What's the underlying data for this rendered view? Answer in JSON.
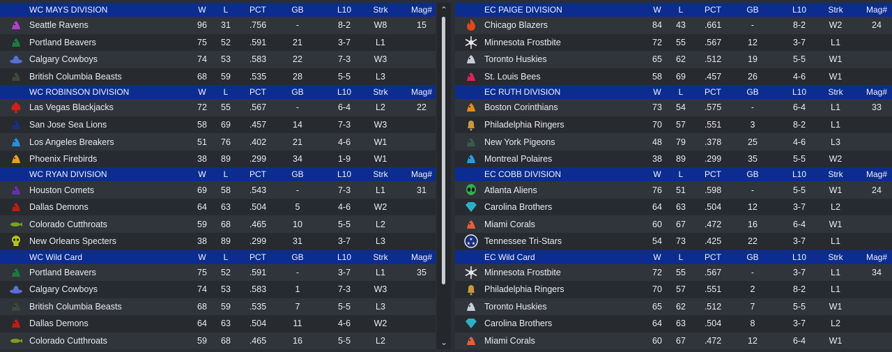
{
  "columns": {
    "w": "W",
    "l": "L",
    "pct": "PCT",
    "gb": "GB",
    "l10": "L10",
    "strk": "Strk",
    "mag": "Mag#"
  },
  "left": [
    {
      "division": "WC MAYS DIVISION",
      "teams": [
        {
          "team": "Seattle Ravens",
          "w": "96",
          "l": "31",
          "pct": ".756",
          "gb": "-",
          "l10": "8-2",
          "strk": "W8",
          "mag": "15",
          "logo": "raven-icon",
          "color": "#b13fc9"
        },
        {
          "team": "Portland Beavers",
          "w": "75",
          "l": "52",
          "pct": ".591",
          "gb": "21",
          "l10": "3-7",
          "strk": "L1",
          "mag": "",
          "logo": "beaver-icon",
          "color": "#1d7a3a"
        },
        {
          "team": "Calgary Cowboys",
          "w": "74",
          "l": "53",
          "pct": ".583",
          "gb": "22",
          "l10": "7-3",
          "strk": "W3",
          "mag": "",
          "logo": "cowboy-hat-icon",
          "color": "#5a6fd6"
        },
        {
          "team": "British Columbia Beasts",
          "w": "68",
          "l": "59",
          "pct": ".535",
          "gb": "28",
          "l10": "5-5",
          "strk": "L3",
          "mag": "",
          "logo": "beast-icon",
          "color": "#3a4a3a"
        }
      ]
    },
    {
      "division": "WC ROBINSON DIVISION",
      "teams": [
        {
          "team": "Las Vegas Blackjacks",
          "w": "72",
          "l": "55",
          "pct": ".567",
          "gb": "-",
          "l10": "6-4",
          "strk": "L2",
          "mag": "22",
          "logo": "spade-icon",
          "color": "#d11f1f"
        },
        {
          "team": "San Jose Sea Lions",
          "w": "58",
          "l": "69",
          "pct": ".457",
          "gb": "14",
          "l10": "7-3",
          "strk": "W3",
          "mag": "",
          "logo": "sea-lion-icon",
          "color": "#1a2f7a"
        },
        {
          "team": "Los Angeles Breakers",
          "w": "51",
          "l": "76",
          "pct": ".402",
          "gb": "21",
          "l10": "4-6",
          "strk": "W1",
          "mag": "",
          "logo": "wave-icon",
          "color": "#2a8fd6"
        },
        {
          "team": "Phoenix Firebirds",
          "w": "38",
          "l": "89",
          "pct": ".299",
          "gb": "34",
          "l10": "1-9",
          "strk": "W1",
          "mag": "",
          "logo": "firebird-icon",
          "color": "#e6a020"
        }
      ]
    },
    {
      "division": "WC RYAN DIVISION",
      "teams": [
        {
          "team": "Houston Comets",
          "w": "69",
          "l": "58",
          "pct": ".543",
          "gb": "-",
          "l10": "7-3",
          "strk": "L1",
          "mag": "31",
          "logo": "comet-icon",
          "color": "#6a2fb0"
        },
        {
          "team": "Dallas Demons",
          "w": "64",
          "l": "63",
          "pct": ".504",
          "gb": "5",
          "l10": "4-6",
          "strk": "W2",
          "mag": "",
          "logo": "demon-icon",
          "color": "#c21a1a"
        },
        {
          "team": "Colorado Cutthroats",
          "w": "59",
          "l": "68",
          "pct": ".465",
          "gb": "10",
          "l10": "5-5",
          "strk": "L2",
          "mag": "",
          "logo": "fish-icon",
          "color": "#7aa020"
        },
        {
          "team": "New Orleans Specters",
          "w": "38",
          "l": "89",
          "pct": ".299",
          "gb": "31",
          "l10": "3-7",
          "strk": "L3",
          "mag": "",
          "logo": "skull-icon",
          "color": "#b8c21a"
        }
      ]
    },
    {
      "division": "WC  Wild Card",
      "teams": [
        {
          "team": "Portland Beavers",
          "w": "75",
          "l": "52",
          "pct": ".591",
          "gb": "-",
          "l10": "3-7",
          "strk": "L1",
          "mag": "35",
          "logo": "beaver-icon",
          "color": "#1d7a3a"
        },
        {
          "team": "Calgary Cowboys",
          "w": "74",
          "l": "53",
          "pct": ".583",
          "gb": "1",
          "l10": "7-3",
          "strk": "W3",
          "mag": "",
          "logo": "cowboy-hat-icon",
          "color": "#5a6fd6"
        },
        {
          "team": "British Columbia Beasts",
          "w": "68",
          "l": "59",
          "pct": ".535",
          "gb": "7",
          "l10": "5-5",
          "strk": "L3",
          "mag": "",
          "logo": "beast-icon",
          "color": "#3a4a3a"
        },
        {
          "team": "Dallas Demons",
          "w": "64",
          "l": "63",
          "pct": ".504",
          "gb": "11",
          "l10": "4-6",
          "strk": "W2",
          "mag": "",
          "logo": "demon-icon",
          "color": "#c21a1a"
        },
        {
          "team": "Colorado Cutthroats",
          "w": "59",
          "l": "68",
          "pct": ".465",
          "gb": "16",
          "l10": "5-5",
          "strk": "L2",
          "mag": "",
          "logo": "fish-icon",
          "color": "#7aa020"
        }
      ]
    }
  ],
  "right": [
    {
      "division": "EC PAIGE DIVISION",
      "teams": [
        {
          "team": "Chicago Blazers",
          "w": "84",
          "l": "43",
          "pct": ".661",
          "gb": "-",
          "l10": "8-2",
          "strk": "W2",
          "mag": "24",
          "logo": "flame-icon",
          "color": "#e0481a"
        },
        {
          "team": "Minnesota Frostbite",
          "w": "72",
          "l": "55",
          "pct": ".567",
          "gb": "12",
          "l10": "3-7",
          "strk": "L1",
          "mag": "",
          "logo": "snowflake-icon",
          "color": "#e8e8e8"
        },
        {
          "team": "Toronto Huskies",
          "w": "65",
          "l": "62",
          "pct": ".512",
          "gb": "19",
          "l10": "5-5",
          "strk": "W1",
          "mag": "",
          "logo": "husky-icon",
          "color": "#c8ccd6"
        },
        {
          "team": "St. Louis Bees",
          "w": "58",
          "l": "69",
          "pct": ".457",
          "gb": "26",
          "l10": "4-6",
          "strk": "W1",
          "mag": "",
          "logo": "bee-icon",
          "color": "#d6245a"
        }
      ]
    },
    {
      "division": "EC RUTH DIVISION",
      "teams": [
        {
          "team": "Boston Corinthians",
          "w": "73",
          "l": "54",
          "pct": ".575",
          "gb": "-",
          "l10": "6-4",
          "strk": "L1",
          "mag": "33",
          "logo": "helmet-icon",
          "color": "#e68a1a"
        },
        {
          "team": "Philadelphia Ringers",
          "w": "70",
          "l": "57",
          "pct": ".551",
          "gb": "3",
          "l10": "8-2",
          "strk": "L1",
          "mag": "",
          "logo": "bell-icon",
          "color": "#c89a3a"
        },
        {
          "team": "New York Pigeons",
          "w": "48",
          "l": "79",
          "pct": ".378",
          "gb": "25",
          "l10": "4-6",
          "strk": "L3",
          "mag": "",
          "logo": "pigeon-icon",
          "color": "#3a5a4a"
        },
        {
          "team": "Montreal Polaires",
          "w": "38",
          "l": "89",
          "pct": ".299",
          "gb": "35",
          "l10": "5-5",
          "strk": "W2",
          "mag": "",
          "logo": "bear-icon",
          "color": "#2a9ae0"
        }
      ]
    },
    {
      "division": "EC COBB DIVISION",
      "teams": [
        {
          "team": "Atlanta Aliens",
          "w": "76",
          "l": "51",
          "pct": ".598",
          "gb": "-",
          "l10": "5-5",
          "strk": "W1",
          "mag": "24",
          "logo": "alien-icon",
          "color": "#2fb04a"
        },
        {
          "team": "Carolina Brothers",
          "w": "64",
          "l": "63",
          "pct": ".504",
          "gb": "12",
          "l10": "3-7",
          "strk": "L2",
          "mag": "",
          "logo": "gem-icon",
          "color": "#2ab0c8"
        },
        {
          "team": "Miami Corals",
          "w": "60",
          "l": "67",
          "pct": ".472",
          "gb": "16",
          "l10": "6-4",
          "strk": "W1",
          "mag": "",
          "logo": "coral-icon",
          "color": "#e0603a"
        },
        {
          "team": "Tennessee Tri-Stars",
          "w": "54",
          "l": "73",
          "pct": ".425",
          "gb": "22",
          "l10": "3-7",
          "strk": "L1",
          "mag": "",
          "logo": "tri-star-icon",
          "color": "#f0f0f0"
        }
      ]
    },
    {
      "division": "EC  Wild Card",
      "teams": [
        {
          "team": "Minnesota Frostbite",
          "w": "72",
          "l": "55",
          "pct": ".567",
          "gb": "-",
          "l10": "3-7",
          "strk": "L1",
          "mag": "34",
          "logo": "snowflake-icon",
          "color": "#e8e8e8"
        },
        {
          "team": "Philadelphia Ringers",
          "w": "70",
          "l": "57",
          "pct": ".551",
          "gb": "2",
          "l10": "8-2",
          "strk": "L1",
          "mag": "",
          "logo": "bell-icon",
          "color": "#c89a3a"
        },
        {
          "team": "Toronto Huskies",
          "w": "65",
          "l": "62",
          "pct": ".512",
          "gb": "7",
          "l10": "5-5",
          "strk": "W1",
          "mag": "",
          "logo": "husky-icon",
          "color": "#c8ccd6"
        },
        {
          "team": "Carolina Brothers",
          "w": "64",
          "l": "63",
          "pct": ".504",
          "gb": "8",
          "l10": "3-7",
          "strk": "L2",
          "mag": "",
          "logo": "gem-icon",
          "color": "#2ab0c8"
        },
        {
          "team": "Miami Corals",
          "w": "60",
          "l": "67",
          "pct": ".472",
          "gb": "12",
          "l10": "6-4",
          "strk": "W1",
          "mag": "",
          "logo": "coral-icon",
          "color": "#e0603a"
        }
      ]
    }
  ],
  "scrollbar": {
    "up": "⌃",
    "down": "⌄"
  }
}
